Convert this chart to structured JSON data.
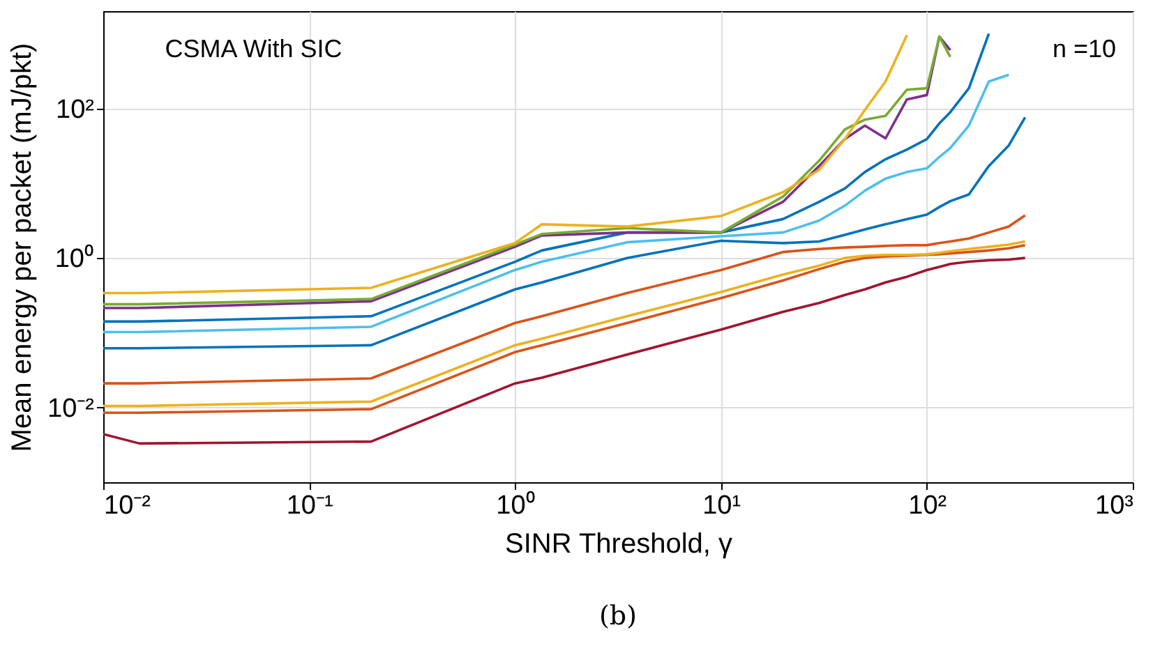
{
  "chart_data": {
    "type": "line",
    "xlabel": "SINR Threshold, γ",
    "ylabel": "Mean energy per packet (mJ/pkt)",
    "annotations": [
      "CSMA With SIC",
      "n =10",
      "(b)"
    ],
    "log": "xy",
    "grid": true,
    "legend": false,
    "line_style": "solid",
    "marker": "none",
    "xlim": [
      0.01,
      1000
    ],
    "ylim": [
      0.001,
      2000
    ],
    "xticks": [
      {
        "value": 0.01,
        "label": "10⁻²"
      },
      {
        "value": 0.1,
        "label": "10⁻¹"
      },
      {
        "value": 1,
        "label": "10⁰"
      },
      {
        "value": 10,
        "label": "10¹"
      },
      {
        "value": 100,
        "label": "10²"
      },
      {
        "value": 1000,
        "label": "10³"
      }
    ],
    "yticks": [
      {
        "value": 0.01,
        "label": "10⁻²"
      },
      {
        "value": 1,
        "label": "10⁰"
      },
      {
        "value": 100,
        "label": "10²"
      }
    ],
    "x": [
      0.01,
      0.015,
      0.2,
      1,
      1.35,
      3.5,
      10,
      20,
      30,
      40,
      50,
      63,
      80,
      100,
      115,
      130,
      160,
      200,
      250,
      300
    ],
    "series": [
      {
        "color": "#a2142f",
        "values": [
          0.0044,
          0.0033,
          0.0035,
          0.021,
          0.025,
          0.051,
          0.11,
          0.19,
          0.25,
          0.32,
          0.38,
          0.47,
          0.56,
          0.69,
          0.76,
          0.83,
          0.89,
          0.93,
          0.95,
          1.0
        ]
      },
      {
        "color": "#d95319",
        "values": [
          0.0085,
          0.0085,
          0.0095,
          0.055,
          0.068,
          0.135,
          0.29,
          0.5,
          0.71,
          0.89,
          1.0,
          1.05,
          1.07,
          1.1,
          1.12,
          1.15,
          1.2,
          1.26,
          1.35,
          1.48
        ]
      },
      {
        "color": "#edb120",
        "values": [
          0.0105,
          0.0105,
          0.012,
          0.068,
          0.083,
          0.166,
          0.35,
          0.6,
          0.79,
          1.0,
          1.07,
          1.1,
          1.1,
          1.12,
          1.17,
          1.23,
          1.32,
          1.41,
          1.51,
          1.66
        ]
      },
      {
        "color": "#d95319",
        "values": [
          0.021,
          0.021,
          0.0245,
          0.135,
          0.166,
          0.34,
          0.69,
          1.2,
          1.32,
          1.38,
          1.41,
          1.45,
          1.48,
          1.48,
          1.58,
          1.66,
          1.82,
          2.19,
          2.63,
          3.72
        ]
      },
      {
        "color": "#0072bd",
        "values": [
          0.062,
          0.062,
          0.068,
          0.38,
          0.47,
          1.0,
          1.7,
          1.58,
          1.66,
          2.04,
          2.4,
          2.82,
          3.31,
          3.8,
          4.79,
          5.75,
          7.08,
          17,
          32,
          76
        ]
      },
      {
        "color": "#4dbeee",
        "values": [
          0.102,
          0.102,
          0.12,
          0.69,
          0.89,
          1.62,
          1.95,
          2.19,
          3.16,
          5.01,
          7.94,
          11.5,
          14.1,
          15.8,
          22.4,
          29.5,
          58.9,
          229,
          282,
          null
        ]
      },
      {
        "color": "#0072bd",
        "values": [
          0.141,
          0.141,
          0.166,
          0.89,
          1.26,
          2.19,
          2.19,
          3.31,
          5.62,
          8.51,
          14.1,
          20.9,
          28.2,
          38.9,
          63.1,
          89.1,
          186,
          1000,
          null,
          null
        ]
      },
      {
        "color": "#7e2f8e",
        "values": [
          0.214,
          0.214,
          0.263,
          1.41,
          2.0,
          2.19,
          2.19,
          5.62,
          17,
          38.9,
          58.9,
          39.8,
          132,
          151,
          912,
          603,
          null,
          null,
          null,
          null
        ]
      },
      {
        "color": "#77ac30",
        "values": [
          0.24,
          0.24,
          0.282,
          1.51,
          2.09,
          2.51,
          2.19,
          6.61,
          20,
          52.5,
          70.8,
          79.4,
          178,
          186,
          912,
          490,
          null,
          null,
          null,
          null
        ]
      },
      {
        "color": "#edb120",
        "values": [
          0.339,
          0.339,
          0.398,
          1.58,
          2.82,
          2.63,
          3.63,
          7.59,
          15.1,
          38.9,
          95.5,
          229,
          955,
          null,
          null,
          null,
          null,
          null,
          null,
          null
        ]
      }
    ]
  }
}
